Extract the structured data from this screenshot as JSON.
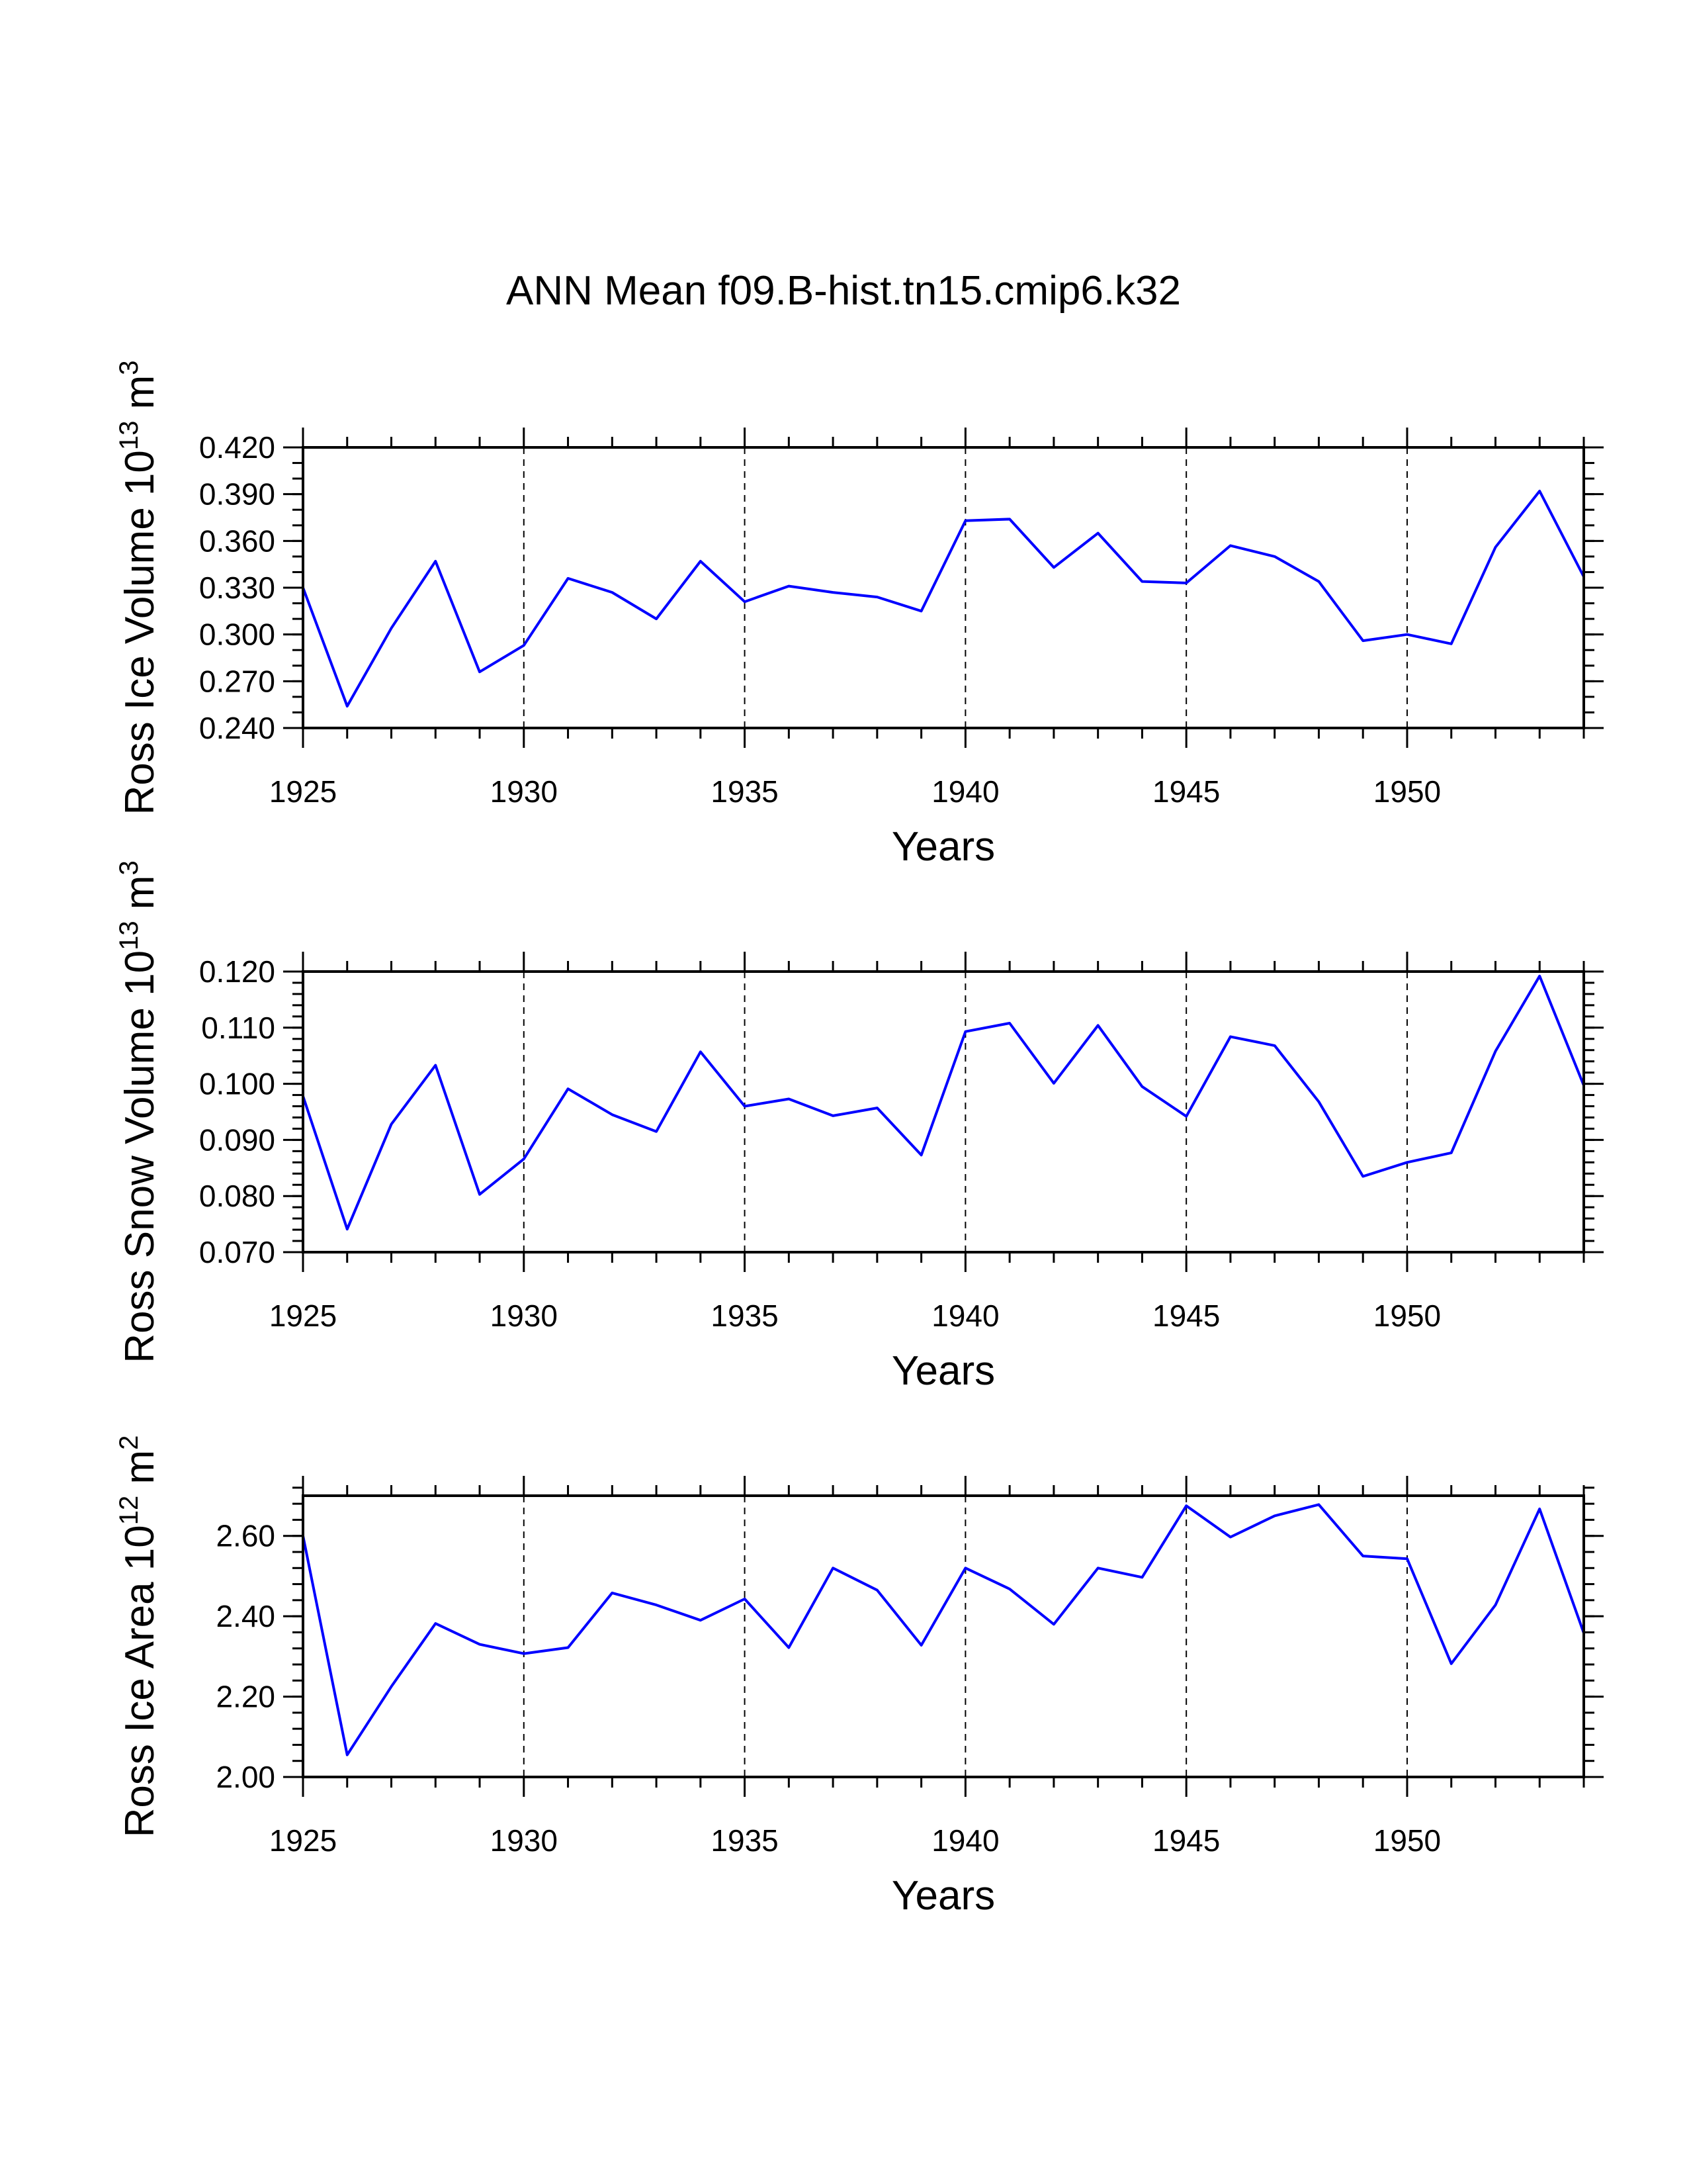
{
  "page_title": "ANN Mean f09.B-hist.tn15.cmip6.k32",
  "chart_data": [
    {
      "type": "line",
      "name": "ross-ice-volume",
      "ylabel_main": "Ross Ice Volume 10",
      "ylabel_exp": "13",
      "ylabel_unit": " m",
      "ylabel_unit_exp": "3",
      "xlabel": "Years",
      "xlim": [
        1925,
        1954
      ],
      "ylim": [
        0.24,
        0.42
      ],
      "yticks": [
        "0.240",
        "0.270",
        "0.300",
        "0.330",
        "0.360",
        "0.390",
        "0.420"
      ],
      "yminor_step": 0.01,
      "xticks": [
        "1925",
        "1930",
        "1935",
        "1940",
        "1945",
        "1950"
      ],
      "grid_x": [
        1930,
        1935,
        1940,
        1945,
        1950
      ],
      "line_color": "#0000ff",
      "x": [
        1925,
        1926,
        1927,
        1928,
        1929,
        1930,
        1931,
        1932,
        1933,
        1934,
        1935,
        1936,
        1937,
        1938,
        1939,
        1940,
        1941,
        1942,
        1943,
        1944,
        1945,
        1946,
        1947,
        1948,
        1949,
        1950,
        1951,
        1952,
        1953,
        1954
      ],
      "values": [
        0.33,
        0.254,
        0.304,
        0.347,
        0.276,
        0.293,
        0.336,
        0.327,
        0.31,
        0.347,
        0.321,
        0.331,
        0.327,
        0.324,
        0.315,
        0.373,
        0.374,
        0.343,
        0.365,
        0.334,
        0.333,
        0.357,
        0.35,
        0.334,
        0.296,
        0.3,
        0.294,
        0.356,
        0.392,
        0.337
      ]
    },
    {
      "type": "line",
      "name": "ross-snow-volume",
      "ylabel_main": "Ross Snow Volume 10",
      "ylabel_exp": "13",
      "ylabel_unit": " m",
      "ylabel_unit_exp": "3",
      "xlabel": "Years",
      "xlim": [
        1925,
        1954
      ],
      "ylim": [
        0.07,
        0.12
      ],
      "yticks": [
        "0.070",
        "0.080",
        "0.090",
        "0.100",
        "0.110",
        "0.120"
      ],
      "yminor_step": 0.002,
      "xticks": [
        "1925",
        "1930",
        "1935",
        "1940",
        "1945",
        "1950"
      ],
      "grid_x": [
        1930,
        1935,
        1940,
        1945,
        1950
      ],
      "line_color": "#0000ff",
      "x": [
        1925,
        1926,
        1927,
        1928,
        1929,
        1930,
        1931,
        1932,
        1933,
        1934,
        1935,
        1936,
        1937,
        1938,
        1939,
        1940,
        1941,
        1942,
        1943,
        1944,
        1945,
        1946,
        1947,
        1948,
        1949,
        1950,
        1951,
        1952,
        1953,
        1954
      ],
      "values": [
        0.0978,
        0.0741,
        0.0928,
        0.1033,
        0.0803,
        0.0866,
        0.0991,
        0.0945,
        0.0915,
        0.1057,
        0.096,
        0.0973,
        0.0943,
        0.0957,
        0.0873,
        0.1093,
        0.1108,
        0.1001,
        0.1104,
        0.0995,
        0.0942,
        0.1084,
        0.1068,
        0.0968,
        0.0835,
        0.086,
        0.0877,
        0.1058,
        0.1192,
        0.0997
      ]
    },
    {
      "type": "line",
      "name": "ross-ice-area",
      "ylabel_main": "Ross Ice Area 10",
      "ylabel_exp": "12",
      "ylabel_unit": " m",
      "ylabel_unit_exp": "2",
      "xlabel": "Years",
      "xlim": [
        1925,
        1954
      ],
      "ylim": [
        2.0,
        2.7
      ],
      "yticks": [
        "2.00",
        "2.20",
        "2.40",
        "2.60"
      ],
      "yminor_step": 0.04,
      "xticks": [
        "1925",
        "1930",
        "1935",
        "1940",
        "1945",
        "1950"
      ],
      "grid_x": [
        1930,
        1935,
        1940,
        1945,
        1950
      ],
      "line_color": "#0000ff",
      "x": [
        1925,
        1926,
        1927,
        1928,
        1929,
        1930,
        1931,
        1932,
        1933,
        1934,
        1935,
        1936,
        1937,
        1938,
        1939,
        1940,
        1941,
        1942,
        1943,
        1944,
        1945,
        1946,
        1947,
        1948,
        1949,
        1950,
        1951,
        1952,
        1953,
        1954
      ],
      "values": [
        2.6,
        2.055,
        2.225,
        2.382,
        2.33,
        2.307,
        2.322,
        2.458,
        2.428,
        2.39,
        2.443,
        2.322,
        2.52,
        2.465,
        2.328,
        2.52,
        2.468,
        2.38,
        2.52,
        2.497,
        2.675,
        2.597,
        2.65,
        2.678,
        2.55,
        2.543,
        2.282,
        2.428,
        2.667,
        2.358
      ]
    }
  ]
}
